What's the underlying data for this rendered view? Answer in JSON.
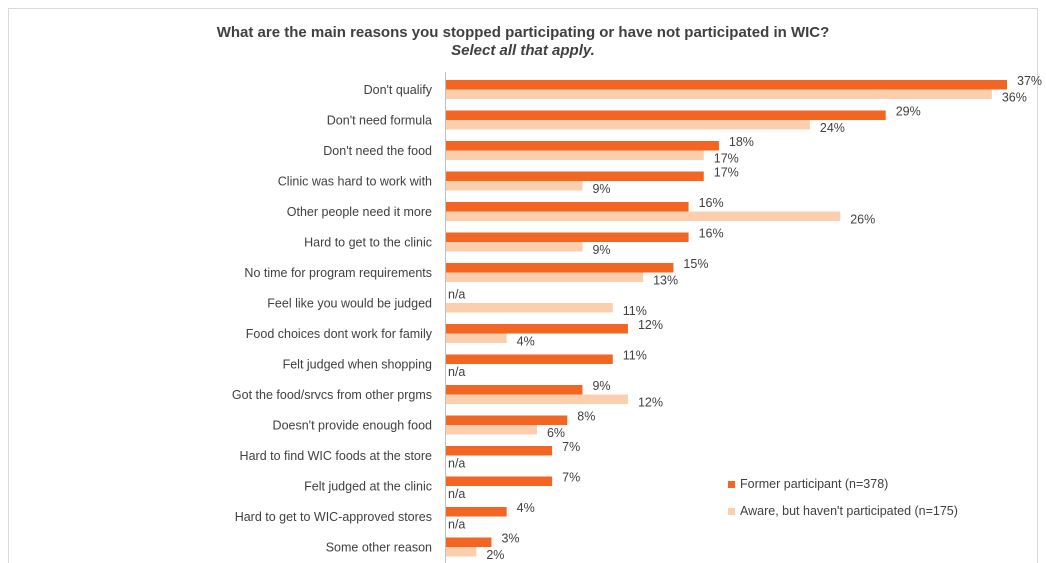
{
  "chart_data": {
    "type": "bar",
    "orientation": "horizontal",
    "title": "What are the main reasons you stopped participating or have not participated in WIC?",
    "subtitle": "Select all that apply.",
    "xlabel": "",
    "ylabel": "",
    "xlim": [
      0,
      37
    ],
    "grid": false,
    "legend_position": "bottom-right",
    "categories": [
      "Don't qualify",
      "Don't need formula",
      "Don't need the food",
      "Clinic was hard to work with",
      "Other people need it more",
      "Hard to get to the clinic",
      "No time for program requirements",
      "Feel like you would be judged",
      "Food choices dont work for family",
      "Felt judged when shopping",
      "Got the food/srvcs from other prgms",
      "Doesn't provide enough food",
      "Hard to find WIC foods at the store",
      "Felt judged at the clinic",
      "Hard to get to WIC-approved stores",
      "Some other reason"
    ],
    "series": [
      {
        "name": "Former participant (n=378)",
        "color": "#f26522",
        "values": [
          37,
          29,
          18,
          17,
          16,
          16,
          15,
          null,
          12,
          11,
          9,
          8,
          7,
          7,
          4,
          3
        ],
        "labels": [
          "37%",
          "29%",
          "18%",
          "17%",
          "16%",
          "16%",
          "15%",
          "n/a",
          "12%",
          "11%",
          "9%",
          "8%",
          "7%",
          "7%",
          "4%",
          "3%"
        ]
      },
      {
        "name": "Aware, but haven't participated (n=175)",
        "color": "#fbcfae",
        "values": [
          36,
          24,
          17,
          9,
          26,
          9,
          13,
          11,
          4,
          null,
          12,
          6,
          null,
          null,
          null,
          2
        ],
        "labels": [
          "36%",
          "24%",
          "17%",
          "9%",
          "26%",
          "9%",
          "13%",
          "11%",
          "4%",
          "n/a",
          "12%",
          "6%",
          "n/a",
          "n/a",
          "n/a",
          "2%"
        ]
      }
    ]
  }
}
